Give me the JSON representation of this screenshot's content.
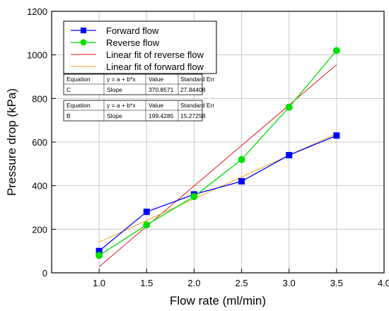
{
  "chart_data": {
    "type": "line",
    "xlabel": "Flow rate (ml/min)",
    "ylabel": "Pressure drop (kPa)",
    "xlim": [
      0.5,
      4.0
    ],
    "ylim": [
      0,
      1200
    ],
    "xticks": [
      "1.0",
      "1.5",
      "2.0",
      "2.5",
      "3.0",
      "3.5",
      "4.0"
    ],
    "yticks": [
      "0",
      "200",
      "400",
      "600",
      "800",
      "1000",
      "1200"
    ],
    "grid": true,
    "series": [
      {
        "name": "Forward flow",
        "color": "#0000ff",
        "marker": "square",
        "x": [
          1.0,
          1.5,
          2.0,
          2.5,
          3.0,
          3.5
        ],
        "y": [
          100,
          280,
          360,
          420,
          540,
          630
        ]
      },
      {
        "name": "Reverse flow",
        "color": "#00e000",
        "marker": "circle",
        "x": [
          1.0,
          1.5,
          2.0,
          2.5,
          3.0,
          3.5
        ],
        "y": [
          80,
          220,
          350,
          520,
          760,
          1020
        ]
      }
    ],
    "fits": [
      {
        "name": "Linear fit of reverse flow",
        "color": "#e41a1c",
        "intercept": -343,
        "slope": 370.8571,
        "x_range": [
          1.0,
          3.5
        ]
      },
      {
        "name": "Linear fit of forward flow",
        "color": "#f0a020",
        "intercept": -59,
        "slope": 199.4285,
        "x_range": [
          1.0,
          3.5
        ]
      }
    ],
    "legend_position": "top-left",
    "fit_tables": [
      {
        "headers": [
          "Equation",
          "y = a + b*x",
          "Value",
          "Standard Err"
        ],
        "row": [
          "C",
          "Slope",
          "370.8571",
          "27.84408"
        ]
      },
      {
        "headers": [
          "Equation",
          "y = a + b*x",
          "Value",
          "Standard Err"
        ],
        "row": [
          "B",
          "Slope",
          "199.4285",
          "15.27258"
        ]
      }
    ]
  }
}
